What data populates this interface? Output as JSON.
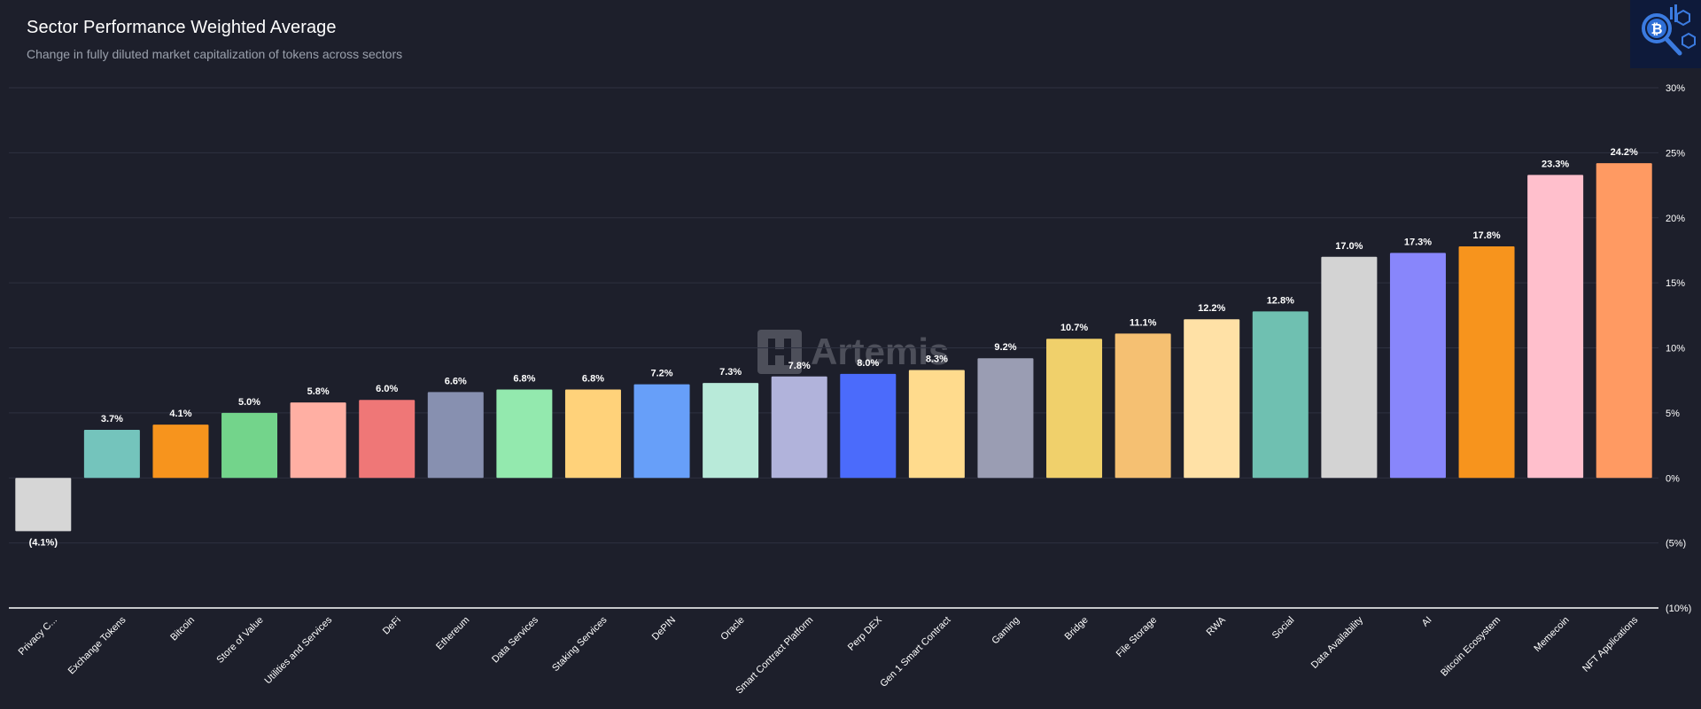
{
  "header": {
    "title": "Sector Performance Weighted Average",
    "subtitle": "Change in fully diluted market capitalization of tokens across sectors"
  },
  "watermark": {
    "text": "Artemis"
  },
  "logo": {
    "icon": "bitcoin-magnifier-icon",
    "color": "#2f6fd6"
  },
  "chart_data": {
    "type": "bar",
    "title": "Sector Performance Weighted Average",
    "subtitle": "Change in fully diluted market capitalization of tokens across sectors",
    "xlabel": "",
    "ylabel": "",
    "ylim": [
      -10,
      30
    ],
    "y_ticks": [
      {
        "value": 30,
        "label": "30%"
      },
      {
        "value": 25,
        "label": "25%"
      },
      {
        "value": 20,
        "label": "20%"
      },
      {
        "value": 15,
        "label": "15%"
      },
      {
        "value": 10,
        "label": "10%"
      },
      {
        "value": 5,
        "label": "5%"
      },
      {
        "value": 0,
        "label": "0%"
      },
      {
        "value": -5,
        "label": "(5%)"
      },
      {
        "value": -10,
        "label": "(10%)"
      }
    ],
    "y_axis_position": "right",
    "grid": true,
    "categories": [
      "Privacy C...",
      "Exchange Tokens",
      "Bitcoin",
      "Store of Value",
      "Utilities and Services",
      "DeFi",
      "Ethereum",
      "Data Services",
      "Staking Services",
      "DePIN",
      "Oracle",
      "Smart Contract Platform",
      "Perp DEX",
      "Gen 1 Smart Contract",
      "Gaming",
      "Bridge",
      "File Storage",
      "RWA",
      "Social",
      "Data Availability",
      "AI",
      "Bitcoin Ecosystem",
      "Memecoin",
      "NFT Applications"
    ],
    "values": [
      -4.1,
      3.7,
      4.1,
      5.0,
      5.8,
      6.0,
      6.6,
      6.8,
      6.8,
      7.2,
      7.3,
      7.8,
      8.0,
      8.3,
      9.2,
      10.7,
      11.1,
      12.2,
      12.8,
      17.0,
      17.3,
      17.8,
      23.3,
      24.2
    ],
    "value_labels": [
      "(4.1%)",
      "3.7%",
      "4.1%",
      "5.0%",
      "5.8%",
      "6.0%",
      "6.6%",
      "6.8%",
      "6.8%",
      "7.2%",
      "7.3%",
      "7.8%",
      "8.0%",
      "8.3%",
      "9.2%",
      "10.7%",
      "11.1%",
      "12.2%",
      "12.8%",
      "17.0%",
      "17.3%",
      "17.8%",
      "23.3%",
      "24.2%"
    ],
    "colors": [
      "#d6d6d6",
      "#74c4bc",
      "#f7941d",
      "#73d48b",
      "#ffafa3",
      "#ef7777",
      "#8790b0",
      "#93e9ae",
      "#ffd27a",
      "#679ff9",
      "#b8ead9",
      "#b1b3db",
      "#4b6bfb",
      "#ffdb8d",
      "#9a9db3",
      "#f0d06b",
      "#f5c072",
      "#ffe1a6",
      "#6fc0b1",
      "#d3d3d3",
      "#8886fb",
      "#f7941d",
      "#ffbfcc",
      "#ff9a62"
    ]
  }
}
